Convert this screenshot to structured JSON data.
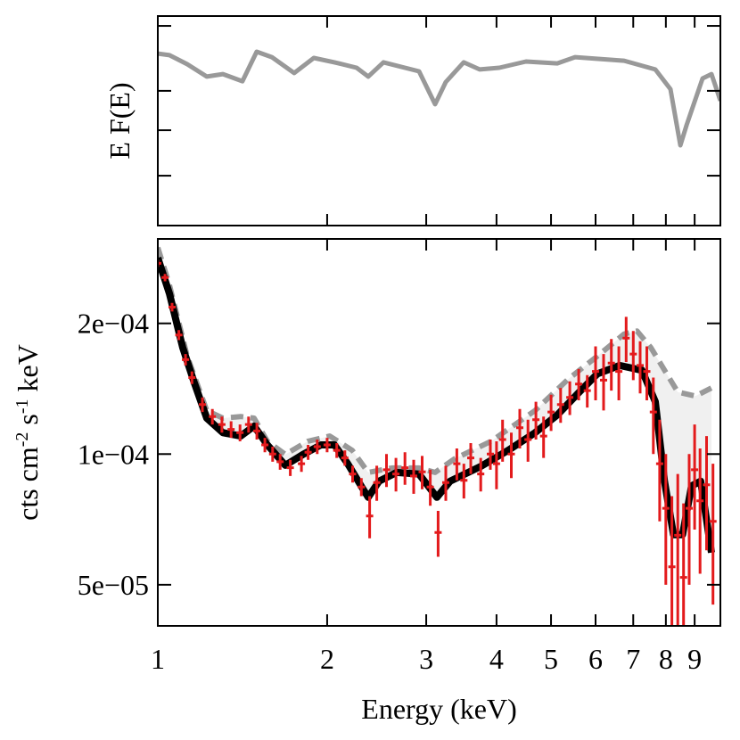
{
  "chart_data": [
    {
      "type": "line",
      "y_label": "E F(E)",
      "log_x": true,
      "xlim": [
        1,
        10
      ],
      "xticks": [
        1,
        2,
        3,
        4,
        5,
        6,
        7,
        8,
        9
      ],
      "ylim": [
        0,
        1
      ],
      "yticks": [
        0.238,
        0.455,
        0.643,
        0.953
      ],
      "tick_labels": false,
      "series": [
        {
          "color": "#999999",
          "x": [
            1.0,
            1.049,
            1.128,
            1.222,
            1.305,
            1.414,
            1.499,
            1.595,
            1.748,
            1.894,
            2.06,
            2.256,
            2.366,
            2.518,
            2.913,
            3.111,
            3.25,
            3.497,
            3.734,
            4.046,
            4.513,
            5.129,
            5.516,
            6.743,
            7.661,
            8.151,
            8.49,
            8.71,
            9.296,
            9.643,
            10.0
          ],
          "values": [
            0.821,
            0.813,
            0.77,
            0.711,
            0.723,
            0.689,
            0.83,
            0.804,
            0.728,
            0.8,
            0.779,
            0.753,
            0.711,
            0.779,
            0.736,
            0.579,
            0.685,
            0.779,
            0.745,
            0.753,
            0.783,
            0.774,
            0.804,
            0.787,
            0.745,
            0.651,
            0.383,
            0.481,
            0.702,
            0.723,
            0.596
          ]
        }
      ]
    },
    {
      "type": "spectrum",
      "x_label": "Energy (keV)",
      "y_label": [
        {
          "text": "cts cm"
        },
        {
          "text": "-2",
          "sup": true
        },
        {
          "text": " s"
        },
        {
          "text": "-1",
          "sup": true
        },
        {
          "text": " keV"
        }
      ],
      "log_x": true,
      "log_y": true,
      "xlim": [
        1,
        10
      ],
      "xticks": [
        1,
        2,
        3,
        4,
        5,
        6,
        7,
        8,
        9
      ],
      "ylim": [
        4.02e-05,
        0.000313
      ],
      "yticks": [
        {
          "value": 5e-05,
          "label": "5e−05"
        },
        {
          "value": 0.0001,
          "label": "1e−04"
        },
        {
          "value": 0.0002,
          "label": "2e−04"
        }
      ],
      "band_color": "#f0f0f0",
      "series": [
        {
          "color": "#999999",
          "dash": true,
          "x": [
            1.0,
            1.049,
            1.128,
            1.222,
            1.305,
            1.404,
            1.483,
            1.566,
            1.685,
            1.846,
            2.022,
            2.216,
            2.366,
            2.608,
            2.913,
            3.111,
            3.37,
            3.91,
            4.684,
            5.37,
            6.04,
            6.74,
            7.11,
            7.52,
            8.4,
            9.03,
            9.64
          ],
          "values": [
            0.000299,
            0.000245,
            0.000168,
            0.000126,
            0.000121,
            0.000122,
            0.000121,
            0.000107,
            9.98e-05,
            0.000107,
            0.00011,
            0.000102,
            9.07e-05,
            9.29e-05,
            9.29e-05,
            9.07e-05,
            9.75e-05,
            0.000107,
            0.000126,
            0.000149,
            0.000168,
            0.000189,
            0.000192,
            0.000176,
            0.000139,
            0.000136,
            0.000142
          ]
        },
        {
          "color": "#000000",
          "x": [
            1.0,
            1.049,
            1.107,
            1.161,
            1.222,
            1.305,
            1.404,
            1.483,
            1.566,
            1.685,
            1.812,
            1.95,
            2.06,
            2.175,
            2.298,
            2.366,
            2.474,
            2.657,
            2.913,
            3.133,
            3.309,
            3.758,
            4.196,
            4.684,
            5.129,
            5.614,
            6.042,
            6.621,
            7.254,
            7.661,
            7.954,
            8.254,
            8.566,
            8.889,
            9.224,
            9.643
          ],
          "values": [
            0.000283,
            0.000234,
            0.000176,
            0.000146,
            0.000121,
            0.000112,
            0.00011,
            0.000116,
            0.000105,
            9.42e-05,
            9.98e-05,
            0.000105,
            0.000105,
            9.51e-05,
            8.45e-05,
            7.95e-05,
            8.66e-05,
            9.07e-05,
            8.99e-05,
            7.95e-05,
            8.66e-05,
            9.38e-05,
            0.000102,
            0.000112,
            0.000123,
            0.000139,
            0.000153,
            0.00016,
            0.000156,
            0.000132,
            8.66e-05,
            6.52e-05,
            6.52e-05,
            8.45e-05,
            8.66e-05,
            5.93e-05
          ]
        },
        {
          "color": "#e31a1c",
          "points": true,
          "x": [
            1.0,
            1.03,
            1.06,
            1.09,
            1.12,
            1.15,
            1.2,
            1.25,
            1.3,
            1.35,
            1.4,
            1.45,
            1.5,
            1.55,
            1.6,
            1.65,
            1.72,
            1.8,
            1.85,
            1.92,
            2.0,
            2.08,
            2.15,
            2.22,
            2.3,
            2.38,
            2.45,
            2.55,
            2.65,
            2.75,
            2.85,
            2.95,
            3.05,
            3.15,
            3.25,
            3.4,
            3.5,
            3.6,
            3.75,
            3.9,
            4.0,
            4.1,
            4.25,
            4.4,
            4.55,
            4.7,
            4.85,
            5.0,
            5.2,
            5.4,
            5.6,
            5.8,
            6.0,
            6.2,
            6.4,
            6.6,
            6.8,
            7.0,
            7.2,
            7.4,
            7.6,
            7.8,
            8.0,
            8.2,
            8.4,
            8.6,
            8.8,
            9.0,
            9.2,
            9.45,
            9.7
          ],
          "values": [
            0.000275,
            0.000255,
            0.000218,
            0.000188,
            0.000165,
            0.00015,
            0.00013,
            0.000122,
            0.000117,
            0.000114,
            0.000112,
            0.000117,
            0.000113,
            0.000105,
            0.0001,
            9.6e-05,
            9.3e-05,
            9.5e-05,
            0.000101,
            0.000104,
            0.000105,
            0.000102,
            9.8e-05,
            9e-05,
            8.4e-05,
            7.2e-05,
            8.6e-05,
            9.2e-05,
            9e-05,
            9.3e-05,
            8.9e-05,
            9.1e-05,
            8.4e-05,
            6.6e-05,
            8.6e-05,
            9.5e-05,
            8.7e-05,
            9.8e-05,
            9e-05,
            0.0001,
            9.5e-05,
            0.000108,
            0.0001,
            0.000115,
            0.000108,
            0.00012,
            0.00011,
            0.000125,
            0.00013,
            0.000135,
            0.000145,
            0.00014,
            0.000155,
            0.000148,
            0.000162,
            0.000155,
            0.000185,
            0.00017,
            0.00016,
            0.000155,
            0.000125,
            9.5e-05,
            7.5e-05,
            5.5e-05,
            6.5e-05,
            5.2e-05,
            7.5e-05,
            9.2e-05,
            7.8e-05,
            8.5e-05,
            7e-05
          ],
          "errors": [
            5e-06,
            5e-06,
            5e-06,
            5e-06,
            5e-06,
            5e-06,
            5e-06,
            5e-06,
            5e-06,
            5e-06,
            5e-06,
            5e-06,
            5e-06,
            4e-06,
            4e-06,
            4e-06,
            4e-06,
            4e-06,
            4e-06,
            4e-06,
            4e-06,
            4e-06,
            4e-06,
            4e-06,
            4e-06,
            8e-06,
            8e-06,
            8e-06,
            8e-06,
            8e-06,
            8e-06,
            8e-06,
            8e-06,
            8e-06,
            8e-06,
            8e-06,
            8e-06,
            8e-06,
            8e-06,
            8e-06,
            1.2e-05,
            1.2e-05,
            1.2e-05,
            1.2e-05,
            1.2e-05,
            1.2e-05,
            1.2e-05,
            1.2e-05,
            1.2e-05,
            1.2e-05,
            1.2e-05,
            1.2e-05,
            2.2e-05,
            2.2e-05,
            2.2e-05,
            2.2e-05,
            2.2e-05,
            2.2e-05,
            2.2e-05,
            2.2e-05,
            2.5e-05,
            2.5e-05,
            2.5e-05,
            2.5e-05,
            2.5e-05,
            2.5e-05,
            2.5e-05,
            2.5e-05,
            2.5e-05,
            2.5e-05,
            2.5e-05
          ]
        }
      ]
    }
  ]
}
